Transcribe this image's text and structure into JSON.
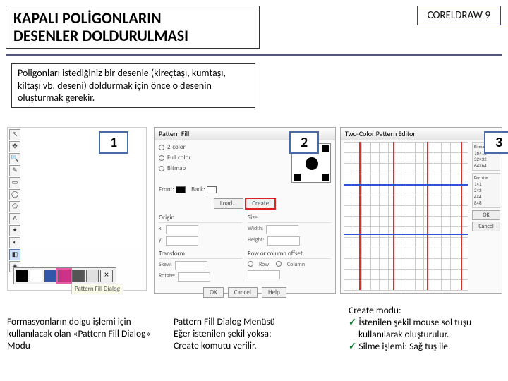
{
  "header": {
    "title_line1": "KAPALI POLİGONLARIN",
    "title_line2": "DESENLER DOLDURULMASI",
    "badge": "CORELDRAW 9",
    "underline_color": "#555577"
  },
  "intro": "Poligonları istediğiniz bir desenle (kireçtaşı, kumtaşı, kiltaşı vb. deseni) doldurmak için önce o desenin oluşturmak gerekir.",
  "panels": {
    "labels": [
      "1",
      "2",
      "3"
    ],
    "p1": {
      "tool_icons": [
        "↖",
        "✥",
        "🔍",
        "✎",
        "▭",
        "◯",
        "⬠",
        "A",
        "✦",
        "◐",
        "◧",
        "◈"
      ],
      "selected_index": 10,
      "swatches": [
        "#000000",
        "#ffffff",
        "#3355aa",
        "#cc3388",
        "#555555",
        "#e0e0e0"
      ],
      "swatch_hl_index": 3,
      "flyout_label": "Pattern Fill Dialog"
    },
    "p2": {
      "title": "Pattern Fill",
      "radios": [
        "2-color",
        "Full color",
        "Bitmap"
      ],
      "front_label": "Front:",
      "back_label": "Back:",
      "buttons": {
        "load": "Load...",
        "create": "Create"
      },
      "sections": {
        "origin": "Origin",
        "size": "Size",
        "size_fields": [
          "Width:",
          "Height:"
        ],
        "transform": "Transform",
        "transform_fields": [
          "Skew:",
          "Rotate:"
        ],
        "offset": "Row or column offset",
        "offset_opts": [
          "Row",
          "Column"
        ]
      },
      "dlg_buttons": [
        "OK",
        "Cancel",
        "Help"
      ]
    },
    "p3": {
      "title": "Two-Color Pattern Editor",
      "grid_color": "#cccccc",
      "red_line_color": "#d83030",
      "blue_line_color": "#3050d8",
      "grid_count": 14,
      "red_positions": [
        22,
        70,
        118,
        166
      ],
      "blue_positions": [
        60,
        130
      ],
      "side_groups": {
        "bitmap": "Bitmap size",
        "bitmap_opts": [
          "16×16",
          "32×32",
          "64×64"
        ],
        "pen": "Pen size",
        "pen_opts": [
          "1×1",
          "2×2",
          "4×4",
          "8×8"
        ]
      },
      "side_buttons": [
        "OK",
        "Cancel"
      ]
    }
  },
  "captions": {
    "c1": "Formasyonların dolgu işlemi için kullanılacak olan «Pattern Fill Dialog» Modu",
    "c2_l1": "Pattern Fill Dialog Menüsü",
    "c2_l2": "Eğer istenilen şekil yoksa:",
    "c2_l3": "Create komutu verilir.",
    "c3_title": "Create modu:",
    "c3_b1": "İstenilen şekil mouse sol tuşu kullanılarak oluşturulur.",
    "c3_b2": "Silme işlemi: Sağ tuş ile."
  }
}
